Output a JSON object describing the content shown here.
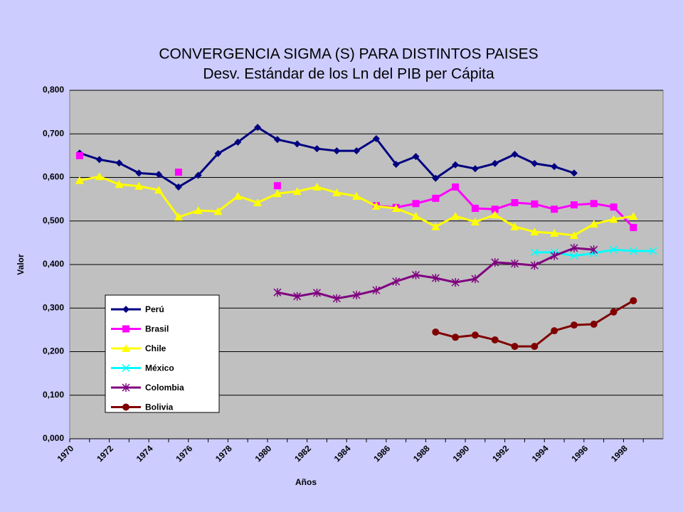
{
  "chart_data": {
    "type": "line",
    "title": "CONVERGENCIA SIGMA (S) PARA DISTINTOS PAISES",
    "subtitle": "Desv. Estándar de los Ln del PIB per Cápita",
    "x_label": "Años",
    "y_label": "Valor",
    "categories": [
      "1970",
      null,
      "1972",
      null,
      "1974",
      null,
      "1976",
      null,
      "1978",
      null,
      "1980",
      null,
      "1982",
      null,
      "1984",
      null,
      "1986",
      null,
      "1988",
      null,
      "1990",
      null,
      "1992",
      null,
      "1994",
      null,
      "1996",
      null,
      "1998",
      null
    ],
    "ylim": [
      0,
      0.8
    ],
    "yticks": [
      {
        "value": 0,
        "label": "0,000"
      },
      {
        "value": 0.1,
        "label": "0,100"
      },
      {
        "value": 0.2,
        "label": "0,200"
      },
      {
        "value": 0.3,
        "label": "0,300"
      },
      {
        "value": 0.4,
        "label": "0,400"
      },
      {
        "value": 0.5,
        "label": "0,500"
      },
      {
        "value": 0.6,
        "label": "0,600"
      },
      {
        "value": 0.7,
        "label": "0,700"
      },
      {
        "value": 0.8,
        "label": "0,800"
      }
    ],
    "grid": true,
    "legend": "lower left",
    "series": [
      {
        "name": "Perú",
        "color": "#000080",
        "marker": "diamond",
        "values": [
          0.656,
          0.641,
          0.633,
          0.61,
          0.607,
          0.578,
          0.605,
          0.655,
          0.681,
          0.715,
          0.687,
          0.677,
          0.666,
          0.661,
          0.661,
          0.689,
          0.63,
          0.648,
          0.598,
          0.629,
          0.62,
          0.632,
          0.653,
          0.632,
          0.625,
          0.61,
          null,
          null,
          null,
          null
        ]
      },
      {
        "name": "Brasil",
        "color": "#ff00ff",
        "marker": "square",
        "values": [
          0.65,
          null,
          null,
          null,
          null,
          0.612,
          null,
          null,
          null,
          null,
          0.581,
          null,
          null,
          null,
          null,
          0.535,
          0.531,
          0.54,
          0.552,
          0.578,
          0.529,
          0.527,
          0.542,
          0.539,
          0.527,
          0.537,
          0.54,
          0.532,
          0.485,
          null
        ]
      },
      {
        "name": "Chile",
        "color": "#ffff00",
        "marker": "triangle",
        "values": [
          0.593,
          0.602,
          0.584,
          0.58,
          0.571,
          0.509,
          0.524,
          0.522,
          0.557,
          0.542,
          0.563,
          0.568,
          0.578,
          0.565,
          0.557,
          0.534,
          0.529,
          0.511,
          0.487,
          0.511,
          0.498,
          0.514,
          0.487,
          0.475,
          0.472,
          0.467,
          0.493,
          0.504,
          0.511,
          null
        ]
      },
      {
        "name": "México",
        "color": "#00ffff",
        "marker": "x",
        "values": [
          null,
          null,
          null,
          null,
          null,
          null,
          null,
          null,
          null,
          null,
          null,
          null,
          null,
          null,
          null,
          null,
          null,
          null,
          null,
          null,
          null,
          null,
          null,
          0.428,
          0.428,
          0.42,
          0.426,
          0.434,
          0.431,
          0.431
        ]
      },
      {
        "name": "Colombia",
        "color": "#800080",
        "marker": "star",
        "values": [
          null,
          null,
          null,
          null,
          null,
          null,
          null,
          null,
          null,
          null,
          0.336,
          0.327,
          0.335,
          0.322,
          0.33,
          0.341,
          0.361,
          0.376,
          0.369,
          0.359,
          0.367,
          0.405,
          0.402,
          0.398,
          0.42,
          0.438,
          0.434,
          null,
          null,
          null
        ]
      },
      {
        "name": "Bolivia",
        "color": "#800000",
        "marker": "circle",
        "values": [
          null,
          null,
          null,
          null,
          null,
          null,
          null,
          null,
          null,
          null,
          null,
          null,
          null,
          null,
          null,
          null,
          null,
          null,
          0.245,
          0.233,
          0.238,
          0.227,
          0.212,
          0.212,
          0.248,
          0.261,
          0.263,
          0.291,
          0.317,
          null
        ]
      }
    ]
  }
}
